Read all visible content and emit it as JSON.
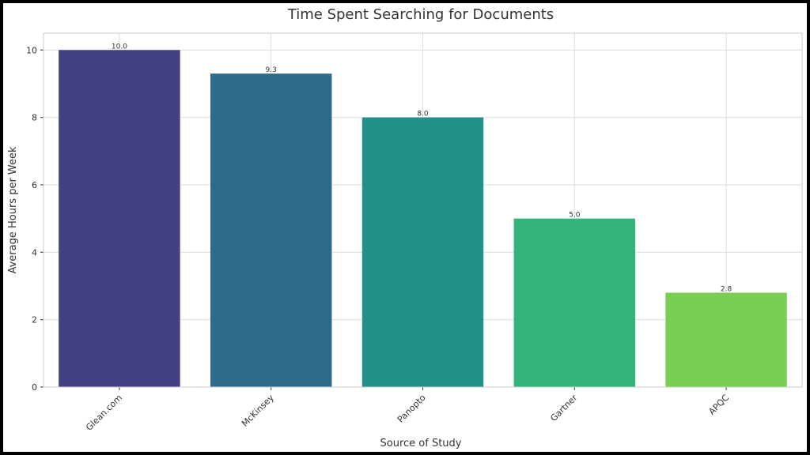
{
  "chart_data": {
    "type": "bar",
    "title": "Time Spent Searching for Documents",
    "xlabel": "Source of Study",
    "ylabel": "Average Hours per Week",
    "categories": [
      "Glean.com",
      "McKinsey",
      "Panopto",
      "Gartner",
      "APQC"
    ],
    "values": [
      10.0,
      9.3,
      8.0,
      5.0,
      2.8
    ],
    "value_labels": [
      "10.0",
      "9.3",
      "8.0",
      "5.0",
      "2.8"
    ],
    "colors": [
      "#423f83",
      "#2e6a8b",
      "#22918a",
      "#33b47b",
      "#78cf53"
    ],
    "ylim": [
      0,
      10.5
    ],
    "yticks": [
      0,
      2,
      4,
      6,
      8,
      10
    ],
    "grid": true,
    "legend": "none"
  }
}
